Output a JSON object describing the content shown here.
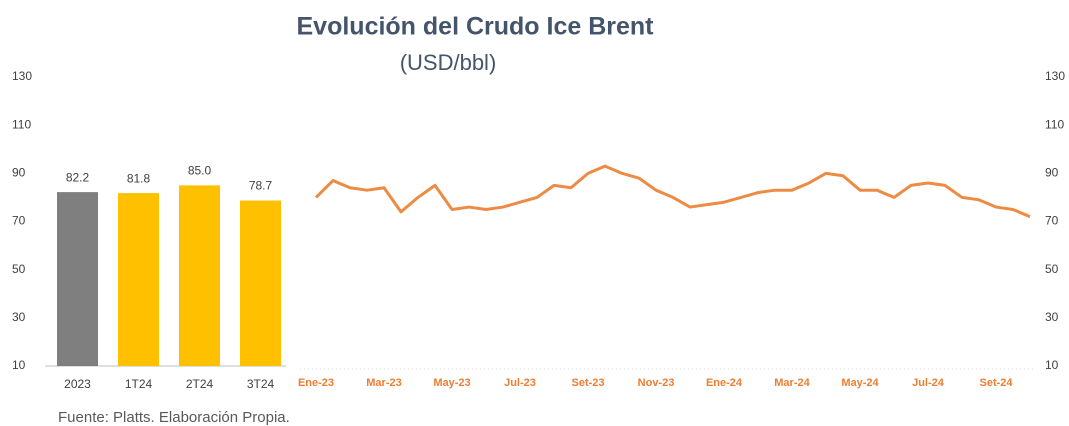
{
  "title": "Evolución del Crudo Ice Brent",
  "subtitle": "(USD/bbl)",
  "source": "Fuente: Platts. Elaboración Propia.",
  "chart_data": [
    {
      "type": "bar",
      "categories": [
        "2023",
        "1T24",
        "2T24",
        "3T24"
      ],
      "values": [
        82.2,
        81.8,
        85.0,
        78.7
      ],
      "value_labels": [
        "82.2",
        "81.8",
        "85.0",
        "78.7"
      ],
      "colors": [
        "#7f7f7f",
        "#ffc000",
        "#ffc000",
        "#ffc000"
      ],
      "ylim": [
        10,
        130
      ],
      "yticks": [
        10,
        30,
        50,
        70,
        90,
        110,
        130
      ]
    },
    {
      "type": "line",
      "categories": [
        "Ene-23",
        null,
        null,
        null,
        "Mar-23",
        null,
        null,
        null,
        "May-23",
        null,
        null,
        null,
        "Jul-23",
        null,
        null,
        null,
        "Set-23",
        null,
        null,
        null,
        "Nov-23",
        null,
        null,
        null,
        "Ene-24",
        null,
        null,
        null,
        "Mar-24",
        null,
        null,
        null,
        "May-24",
        null,
        null,
        null,
        "Jul-24",
        null,
        null,
        null,
        "Set-24",
        null,
        null
      ],
      "series": [
        {
          "color": "#ed8b45",
          "values": [
            80,
            87,
            84,
            83,
            84,
            74,
            80,
            85,
            75,
            76,
            75,
            76,
            78,
            80,
            85,
            84,
            90,
            93,
            90,
            88,
            83,
            80,
            76,
            77,
            78,
            80,
            82,
            83,
            83,
            86,
            90,
            89,
            83,
            83,
            80,
            85,
            86,
            85,
            80,
            79,
            76,
            75,
            72
          ]
        }
      ],
      "ylim": [
        10,
        130
      ],
      "yticks": [
        10,
        30,
        50,
        70,
        90,
        110,
        130
      ]
    }
  ]
}
